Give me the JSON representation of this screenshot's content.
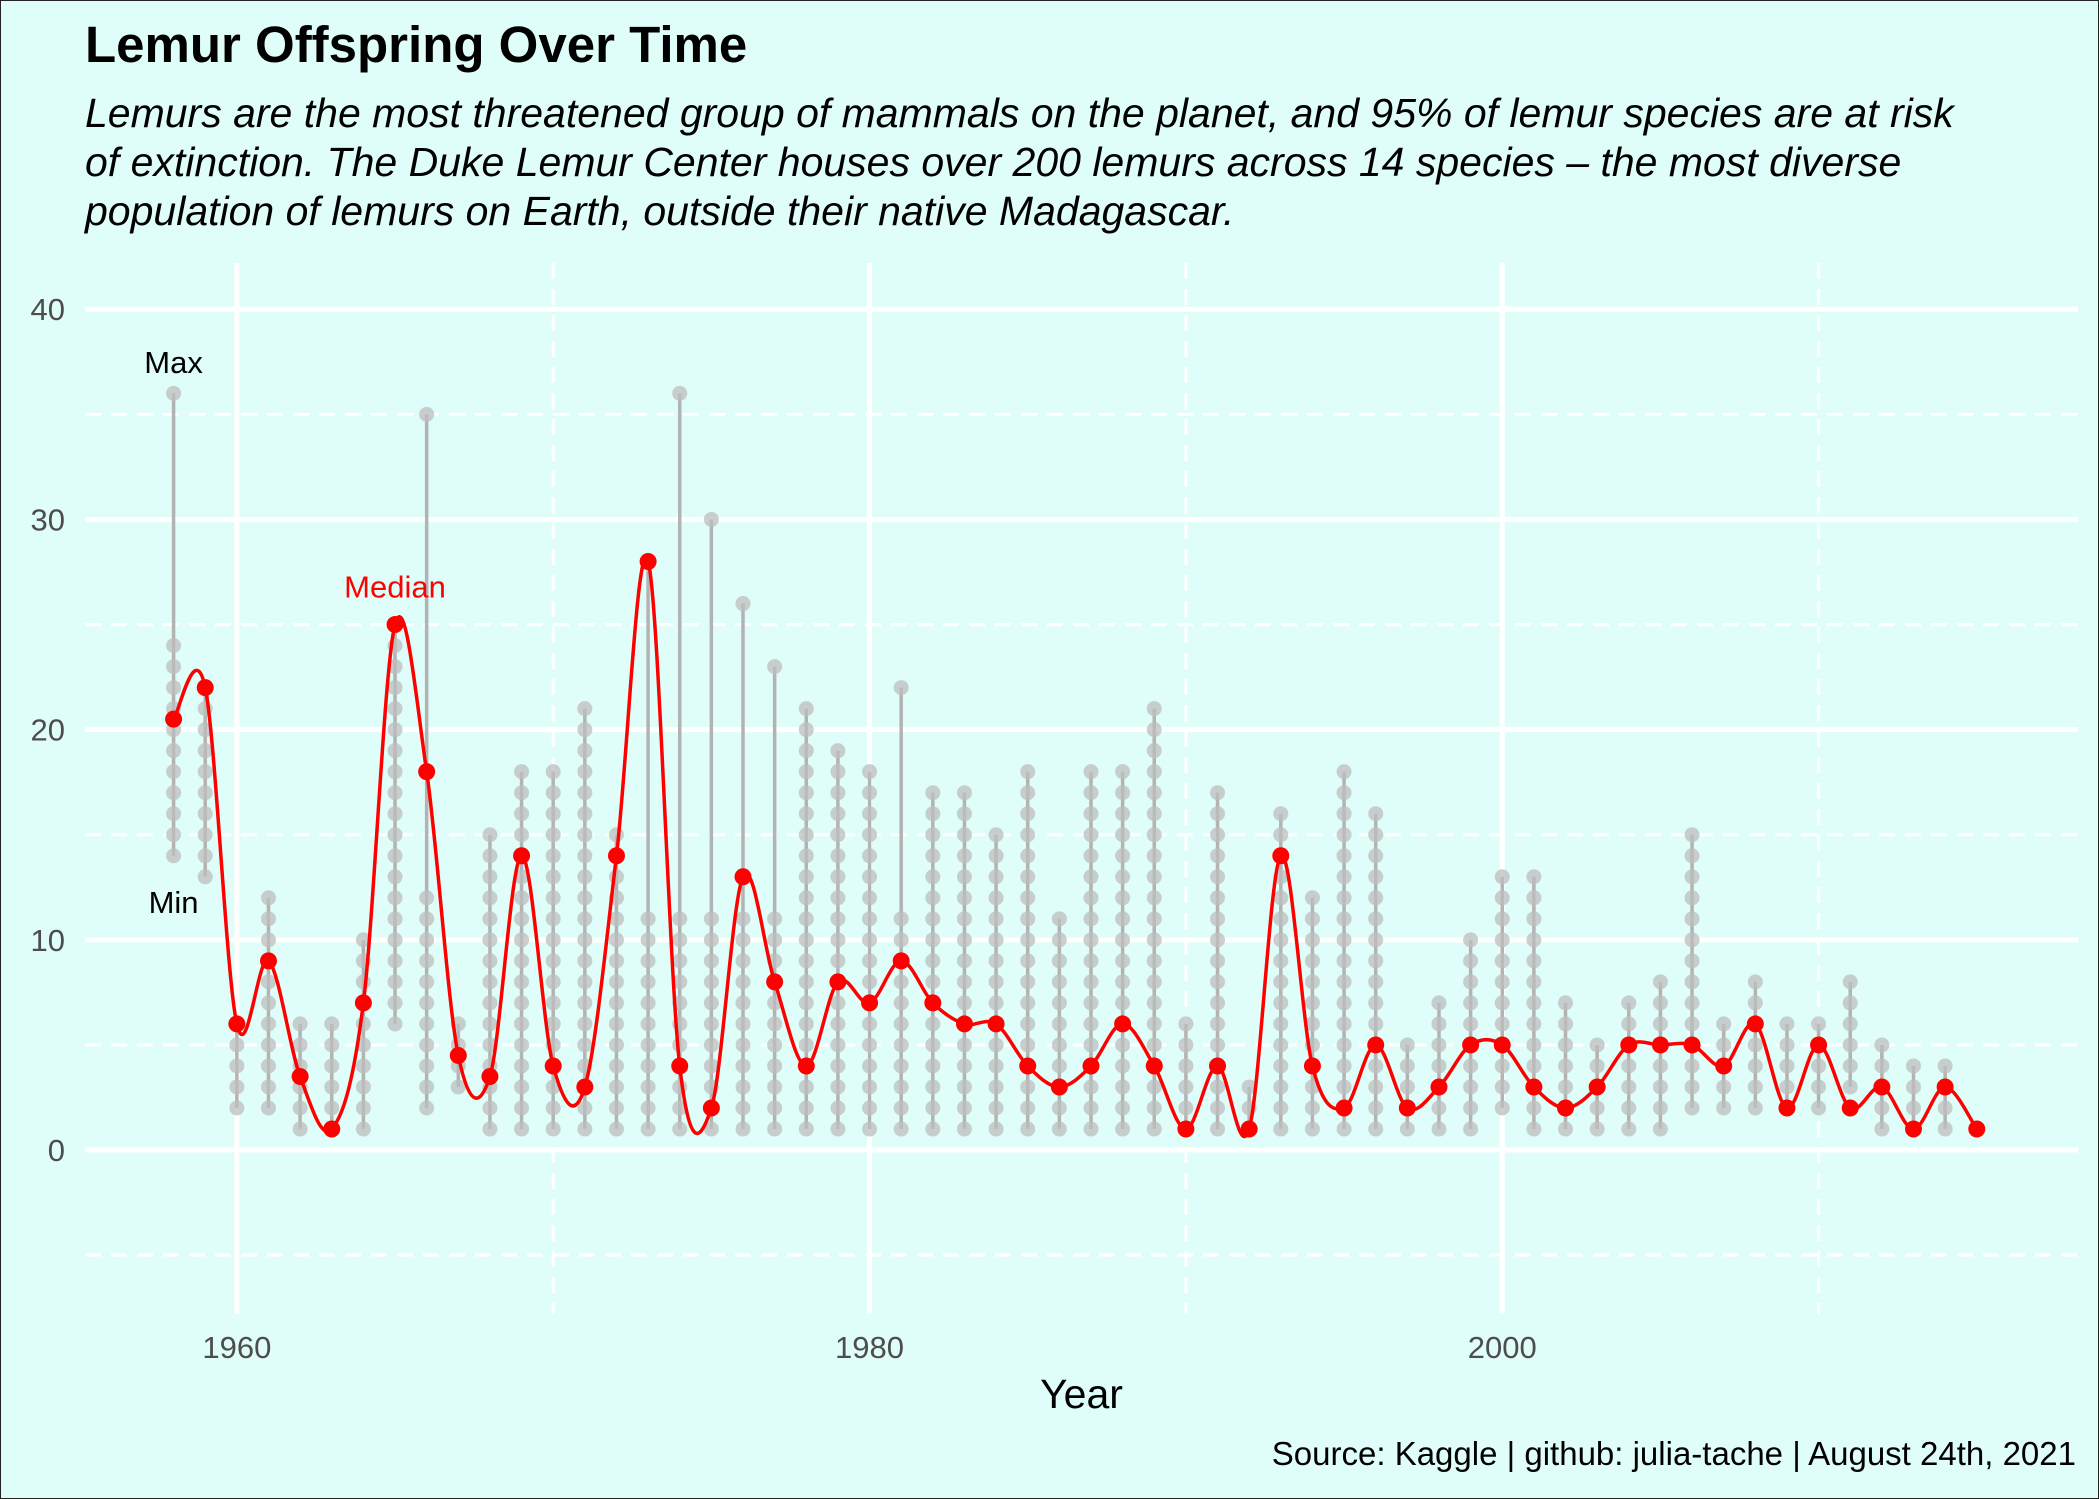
{
  "chart_data": {
    "type": "line",
    "title": "Lemur Offspring Over Time",
    "subtitle": [
      "Lemurs are the most threatened group of mammals on the planet, and 95% of lemur species are at risk",
      "of extinction. The Duke Lemur Center houses over 200 lemurs across 14 species – the most diverse",
      "population of lemurs on Earth, outside their native Madagascar."
    ],
    "caption": "Source: Kaggle | github: julia-tache | August 24th, 2021",
    "xlabel": "Year",
    "ylabel": "",
    "xlim": [
      1955.2,
      2018.2
    ],
    "ylim": [
      -7.8,
      42.2
    ],
    "x_ticks": [
      1960,
      1980,
      2000
    ],
    "y_ticks": [
      0,
      10,
      20,
      30,
      40
    ],
    "grid": true,
    "annotations": [
      {
        "text": "Max",
        "x": 1958,
        "y": 37.5,
        "color": "#000000"
      },
      {
        "text": "Min",
        "x": 1958,
        "y": 11.8,
        "color": "#000000"
      },
      {
        "text": "Median",
        "x": 1965,
        "y": 26.8,
        "color": "#ff0000"
      }
    ],
    "colors": {
      "median": "#ff0000",
      "points": "#bdbdbd",
      "range": "#b3b3b3",
      "background": "#dffdf9",
      "grid": "#ffffff"
    },
    "series": [
      {
        "name": "Median",
        "x": [
          1958,
          1959,
          1960,
          1961,
          1962,
          1963,
          1964,
          1965,
          1966,
          1967,
          1968,
          1969,
          1970,
          1971,
          1972,
          1973,
          1974,
          1975,
          1976,
          1977,
          1978,
          1979,
          1980,
          1981,
          1982,
          1983,
          1984,
          1985,
          1986,
          1987,
          1988,
          1989,
          1990,
          1991,
          1992,
          1993,
          1994,
          1995,
          1996,
          1997,
          1998,
          1999,
          2000,
          2001,
          2002,
          2003,
          2004,
          2005,
          2006,
          2007,
          2008,
          2009,
          2010,
          2011,
          2012,
          2013,
          2014,
          2015,
          2016
        ],
        "values": [
          20.5,
          22,
          6,
          9,
          3.5,
          1,
          7,
          25,
          18,
          4.5,
          3.5,
          14,
          4,
          3,
          14,
          28,
          4,
          2,
          13,
          8,
          4,
          8,
          7,
          9,
          7,
          6,
          6,
          4,
          3,
          4,
          6,
          4,
          1,
          4,
          1,
          14,
          4,
          2,
          5,
          2,
          3,
          5,
          5,
          3,
          2,
          3,
          5,
          5,
          5,
          4,
          6,
          2,
          5,
          2,
          3,
          1,
          3,
          1,
          null
        ]
      },
      {
        "name": "Max",
        "x": [
          1958,
          1959,
          1960,
          1961,
          1962,
          1963,
          1964,
          1965,
          1966,
          1967,
          1968,
          1969,
          1970,
          1971,
          1972,
          1973,
          1974,
          1975,
          1976,
          1977,
          1978,
          1979,
          1980,
          1981,
          1982,
          1983,
          1984,
          1985,
          1986,
          1987,
          1988,
          1989,
          1990,
          1991,
          1992,
          1993,
          1994,
          1995,
          1996,
          1997,
          1998,
          1999,
          2000,
          2001,
          2002,
          2003,
          2004,
          2005,
          2006,
          2007,
          2008,
          2009,
          2010,
          2011,
          2012,
          2013,
          2014,
          2015,
          2016
        ],
        "values": [
          36,
          22,
          6,
          12,
          6,
          6,
          10,
          25,
          35,
          6,
          15,
          18,
          18,
          21,
          15,
          28,
          36,
          30,
          26,
          23,
          21,
          19,
          18,
          22,
          17,
          17,
          15,
          18,
          11,
          18,
          18,
          21,
          6,
          17,
          3,
          16,
          12,
          18,
          16,
          5,
          7,
          10,
          13,
          13,
          7,
          5,
          7,
          8,
          15,
          6,
          8,
          6,
          6,
          8,
          5,
          4,
          4,
          1,
          null
        ]
      },
      {
        "name": "Min",
        "x": [
          1958,
          1959,
          1960,
          1961,
          1962,
          1963,
          1964,
          1965,
          1966,
          1967,
          1968,
          1969,
          1970,
          1971,
          1972,
          1973,
          1974,
          1975,
          1976,
          1977,
          1978,
          1979,
          1980,
          1981,
          1982,
          1983,
          1984,
          1985,
          1986,
          1987,
          1988,
          1989,
          1990,
          1991,
          1992,
          1993,
          1994,
          1995,
          1996,
          1997,
          1998,
          1999,
          2000,
          2001,
          2002,
          2003,
          2004,
          2005,
          2006,
          2007,
          2008,
          2009,
          2010,
          2011,
          2012,
          2013,
          2014,
          2015,
          2016
        ],
        "values": [
          14,
          13,
          2,
          2,
          1,
          1,
          1,
          6,
          2,
          3,
          1,
          1,
          1,
          1,
          1,
          1,
          1,
          1,
          1,
          1,
          1,
          1,
          1,
          1,
          1,
          1,
          1,
          1,
          1,
          1,
          1,
          1,
          1,
          1,
          1,
          1,
          1,
          1,
          1,
          1,
          1,
          1,
          2,
          1,
          1,
          1,
          1,
          1,
          2,
          2,
          2,
          2,
          2,
          3,
          1,
          1,
          1,
          1,
          null
        ]
      }
    ]
  }
}
